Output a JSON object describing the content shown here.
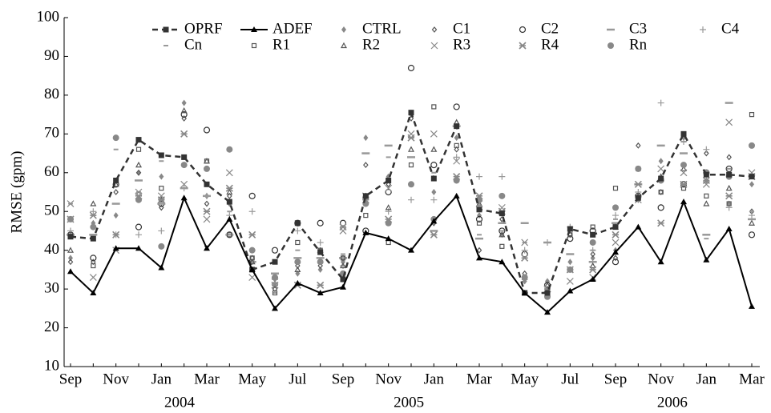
{
  "chart_data": {
    "type": "line",
    "y_label": "RMSE (gpm)",
    "categories": [
      "Sep",
      null,
      "Nov",
      null,
      "Jan",
      null,
      "Mar",
      null,
      "May",
      null,
      "Jul",
      null,
      "Sep",
      null,
      "Nov",
      null,
      "Jan",
      null,
      "Mar",
      null,
      "May",
      null,
      "Jul",
      null,
      "Sep",
      null,
      "Nov",
      null,
      "Jan",
      null,
      "Mar"
    ],
    "year_labels": [
      "2004",
      "2005",
      "2006"
    ],
    "ylim": [
      10,
      100
    ],
    "yticks": [
      10,
      20,
      30,
      40,
      50,
      60,
      70,
      80,
      90,
      100
    ],
    "grid": false,
    "legend": "top",
    "series": [
      {
        "name": "OPRF",
        "color": "#333333",
        "line": "dashed",
        "marker": "square",
        "values": [
          43.5,
          43,
          58,
          68.5,
          64.5,
          64,
          57,
          52.5,
          35,
          37,
          47,
          39.5,
          32.5,
          54,
          58,
          75.5,
          58.5,
          72,
          50.5,
          49.5,
          29,
          29,
          45.5,
          44,
          46,
          53.5,
          58.5,
          70,
          59.5,
          59.5,
          59
        ]
      },
      {
        "name": "ADEF",
        "color": "#000000",
        "line": "solid",
        "marker": "triangle",
        "values": [
          34.5,
          29,
          40.5,
          40.5,
          35.5,
          53.5,
          40.5,
          48,
          35,
          25,
          31.5,
          29,
          30.5,
          44.5,
          43,
          40,
          47.5,
          54,
          38,
          37,
          29,
          24,
          29.5,
          32.5,
          39.5,
          46,
          37,
          52.5,
          37.5,
          45.5,
          25.5
        ]
      },
      {
        "name": "CTRL",
        "color": "#888888",
        "line": "none",
        "marker": "diamond-filled",
        "values": [
          38,
          47,
          49,
          60,
          59,
          78,
          54,
          52,
          37,
          31,
          34,
          35,
          37,
          69,
          59,
          75,
          55,
          69,
          49,
          44,
          32,
          32,
          37,
          38,
          40,
          53,
          63,
          69,
          58,
          52,
          57
        ]
      },
      {
        "name": "C1",
        "color": "#555555",
        "line": "none",
        "marker": "diamond-open",
        "values": [
          37,
          37,
          55,
          60,
          51,
          74,
          52,
          54,
          38,
          30,
          36,
          36,
          38,
          62,
          57,
          74,
          47,
          66,
          40,
          48,
          34,
          30,
          44,
          39,
          38,
          67,
          55,
          62,
          65,
          64,
          50
        ]
      },
      {
        "name": "C2",
        "color": "#333333",
        "line": "none",
        "marker": "circle-open",
        "values": [
          44,
          38,
          57,
          46,
          52,
          75,
          71,
          44,
          54,
          40,
          47,
          47,
          47,
          45,
          55,
          87,
          62,
          77,
          48,
          45,
          39,
          31,
          43,
          45,
          37,
          54,
          51,
          57,
          60,
          61,
          44
        ]
      },
      {
        "name": "C3",
        "color": "#999999",
        "line": "none",
        "marker": "dash",
        "values": [
          44,
          44,
          52,
          58,
          52,
          56,
          54,
          44,
          37,
          34,
          38,
          38,
          38,
          65,
          67,
          64,
          45,
          72,
          43,
          47,
          47,
          42,
          39,
          37,
          47,
          57,
          67,
          65,
          44,
          78,
          48
        ]
      },
      {
        "name": "C4",
        "color": "#999999",
        "line": "none",
        "marker": "plus",
        "values": [
          45,
          50,
          44,
          44,
          45,
          56,
          54,
          49,
          50,
          33,
          45,
          42,
          36,
          53,
          50,
          53,
          53,
          64,
          59,
          59,
          40,
          42,
          46,
          40,
          49,
          55,
          78,
          68,
          66,
          51,
          49
        ]
      },
      {
        "name": "Cn",
        "color": "#999999",
        "line": "none",
        "marker": "short-dash",
        "values": [
          52,
          44,
          66,
          55,
          63,
          62,
          41,
          50,
          37,
          29,
          40,
          37,
          39,
          65,
          64,
          69,
          60,
          72,
          44,
          45,
          42,
          29,
          46,
          40,
          48,
          53,
          67,
          68,
          43,
          61,
          50
        ]
      },
      {
        "name": "R1",
        "color": "#555555",
        "line": "none",
        "marker": "square-open",
        "values": [
          44,
          36,
          58,
          66,
          56,
          64,
          63,
          44,
          38,
          29,
          42,
          40,
          38,
          49,
          42,
          62,
          77,
          67,
          47,
          41,
          33,
          29,
          44,
          46,
          56,
          61,
          55,
          56,
          54,
          52,
          75
        ]
      },
      {
        "name": "R2",
        "color": "#555555",
        "line": "none",
        "marker": "triangle-open",
        "values": [
          40,
          52,
          57,
          62,
          53,
          76,
          63,
          55,
          37,
          33,
          35,
          40,
          36,
          54,
          51,
          66,
          66,
          73,
          52,
          44,
          33,
          31,
          35,
          36,
          46,
          54,
          59,
          61,
          52,
          56,
          47
        ]
      },
      {
        "name": "R3",
        "color": "#888888",
        "line": "none",
        "marker": "x",
        "values": [
          52,
          33,
          40,
          55,
          54,
          57,
          48,
          60,
          33,
          32,
          31,
          31,
          45,
          54,
          56,
          70,
          70,
          63,
          52,
          51,
          42,
          30,
          32,
          33,
          42,
          53,
          61,
          60,
          57,
          73,
          60
        ]
      },
      {
        "name": "R4",
        "color": "#888888",
        "line": "none",
        "marker": "star",
        "values": [
          48,
          49,
          44,
          54,
          53,
          70,
          50,
          56,
          44,
          31,
          31,
          31,
          46,
          53,
          48,
          69,
          44,
          59,
          54,
          50,
          38,
          30,
          35,
          35,
          44,
          57,
          47,
          57,
          58,
          54,
          59
        ]
      },
      {
        "name": "Rn",
        "color": "#888888",
        "line": "none",
        "marker": "circle-filled",
        "values": [
          48,
          46,
          69,
          53,
          41,
          62,
          61,
          66,
          40,
          33,
          37,
          37,
          34,
          52,
          47,
          57,
          48,
          58,
          53,
          54,
          33,
          28,
          35,
          42,
          51,
          61,
          58,
          62,
          60,
          59,
          67
        ]
      }
    ]
  }
}
